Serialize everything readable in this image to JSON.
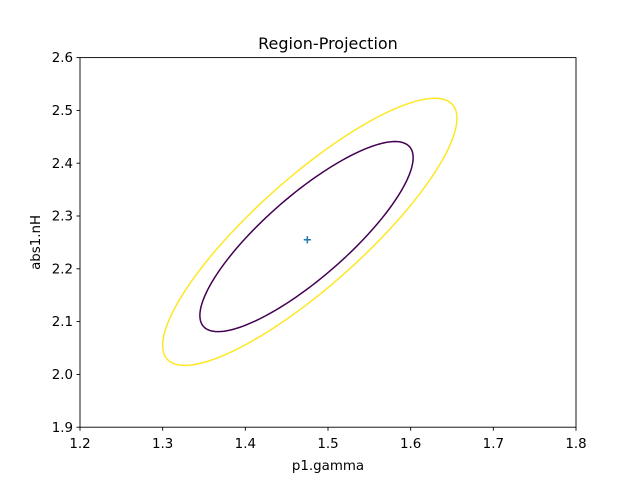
{
  "window": {
    "background": "#ffffff",
    "frame_color": "#000000"
  },
  "chart_data": {
    "type": "contour",
    "title": "Region-Projection",
    "xlabel": "p1.gamma",
    "ylabel": "abs1.nH",
    "xlim": [
      1.2,
      1.8
    ],
    "ylim": [
      1.9,
      2.6
    ],
    "x_ticks": [
      1.2,
      1.3,
      1.4,
      1.5,
      1.6,
      1.7,
      1.8
    ],
    "x_tick_labels": [
      "1.2",
      "1.3",
      "1.4",
      "1.5",
      "1.6",
      "1.7",
      "1.8"
    ],
    "y_ticks": [
      1.9,
      2.0,
      2.1,
      2.2,
      2.3,
      2.4,
      2.5,
      2.6
    ],
    "y_tick_labels": [
      "1.9",
      "2.0",
      "2.1",
      "2.2",
      "2.3",
      "2.4",
      "2.5",
      "2.6"
    ],
    "grid": false,
    "legend": false,
    "best_fit_point": {
      "x": 1.475,
      "y": 2.255,
      "marker": "plus",
      "color": "#1f77b4"
    },
    "contours": [
      {
        "name": "inner-confidence-contour",
        "cx": 1.474,
        "cy": 2.261,
        "rx": 0.129,
        "ry": 0.18,
        "rho": 0.83,
        "color": "#440154",
        "linewidth": 1.5
      },
      {
        "name": "outer-confidence-contour",
        "cx": 1.478,
        "cy": 2.27,
        "rx": 0.178,
        "ry": 0.253,
        "rho": 0.85,
        "color": "#fde725",
        "linewidth": 1.5
      }
    ]
  }
}
